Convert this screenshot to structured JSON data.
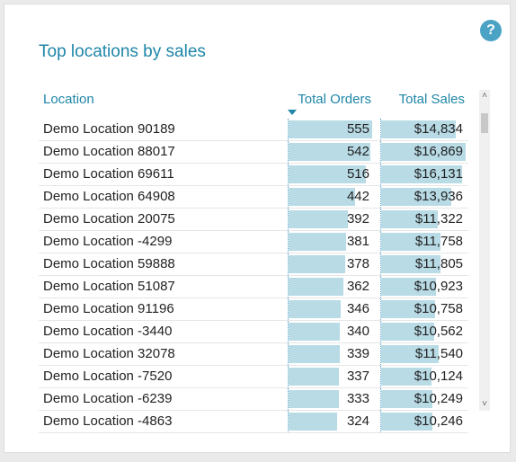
{
  "card": {
    "title": "Top locations by sales",
    "help_icon": "?"
  },
  "table": {
    "columns": [
      "Location",
      "Total Orders",
      "Total Sales"
    ],
    "sort_column": "Total Orders",
    "sort_direction": "descending",
    "max_orders": 555,
    "max_sales": 16869,
    "bar_color": "#b8dbe6",
    "rows": [
      {
        "location": "Demo Location 90189",
        "orders": 555,
        "orders_text": "555",
        "sales": 14834,
        "sales_text": "$14,834"
      },
      {
        "location": "Demo Location 88017",
        "orders": 542,
        "orders_text": "542",
        "sales": 16869,
        "sales_text": "$16,869"
      },
      {
        "location": "Demo Location 69611",
        "orders": 516,
        "orders_text": "516",
        "sales": 16131,
        "sales_text": "$16,131"
      },
      {
        "location": "Demo Location 64908",
        "orders": 442,
        "orders_text": "442",
        "sales": 13936,
        "sales_text": "$13,936"
      },
      {
        "location": "Demo Location 20075",
        "orders": 392,
        "orders_text": "392",
        "sales": 11322,
        "sales_text": "$11,322"
      },
      {
        "location": "Demo Location -4299",
        "orders": 381,
        "orders_text": "381",
        "sales": 11758,
        "sales_text": "$11,758"
      },
      {
        "location": "Demo Location 59888",
        "orders": 378,
        "orders_text": "378",
        "sales": 11805,
        "sales_text": "$11,805"
      },
      {
        "location": "Demo Location 51087",
        "orders": 362,
        "orders_text": "362",
        "sales": 10923,
        "sales_text": "$10,923"
      },
      {
        "location": "Demo Location 91196",
        "orders": 346,
        "orders_text": "346",
        "sales": 10758,
        "sales_text": "$10,758"
      },
      {
        "location": "Demo Location -3440",
        "orders": 340,
        "orders_text": "340",
        "sales": 10562,
        "sales_text": "$10,562"
      },
      {
        "location": "Demo Location 32078",
        "orders": 339,
        "orders_text": "339",
        "sales": 11540,
        "sales_text": "$11,540"
      },
      {
        "location": "Demo Location -7520",
        "orders": 337,
        "orders_text": "337",
        "sales": 10124,
        "sales_text": "$10,124"
      },
      {
        "location": "Demo Location -6239",
        "orders": 333,
        "orders_text": "333",
        "sales": 10249,
        "sales_text": "$10,249"
      },
      {
        "location": "Demo Location -4863",
        "orders": 324,
        "orders_text": "324",
        "sales": 10246,
        "sales_text": "$10,246"
      }
    ]
  },
  "scrollbar": {
    "up_glyph": "˄",
    "down_glyph": "˅"
  }
}
